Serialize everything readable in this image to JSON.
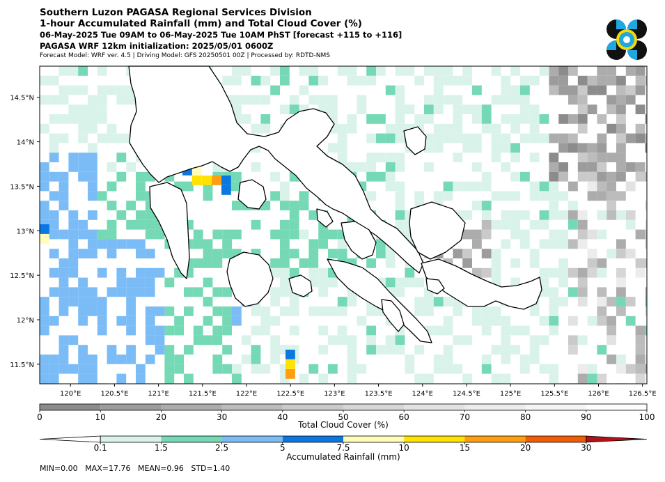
{
  "header": {
    "title": "Southern Luzon PAGASA Regional Services Division",
    "subtitle": "1-hour Accumulated Rainfall (mm) and Total Cloud Cover (%)",
    "valid_time": "06-May-2025 Tue 09AM to 06-May-2025 Tue 10AM PhST [forecast +115 to +116]",
    "init": "PAGASA WRF 12km initialization: 2025/05/01 0600Z",
    "model_info": "Forecast Model: WRF ver. 4.5 | Driving Model: GFS 20250501 00Z | Processed by: RDTD-NMS"
  },
  "logo": {
    "name": "pagasa-logo"
  },
  "map": {
    "extent": {
      "lon": [
        119.65,
        126.55
      ],
      "lat": [
        11.28,
        14.85
      ]
    },
    "lon_ticks": [
      "120°E",
      "120.5°E",
      "121°E",
      "121.5°E",
      "122°E",
      "122.5°E",
      "123°E",
      "123.5°E",
      "124°E",
      "124.5°E",
      "125°E",
      "125.5°E",
      "126°E",
      "126.5°E"
    ],
    "lon_values": [
      120,
      120.5,
      121,
      121.5,
      122,
      122.5,
      123,
      123.5,
      124,
      124.5,
      125,
      125.5,
      126,
      126.5
    ],
    "lat_ticks": [
      "14.5°N",
      "14°N",
      "13.5°N",
      "13°N",
      "12.5°N",
      "12°N",
      "11.5°N"
    ],
    "lat_values": [
      14.5,
      14,
      13.5,
      13,
      12.5,
      12,
      11.5
    ]
  },
  "cloud_colorbar": {
    "label": "Total Cloud Cover (%)",
    "ticks": [
      "0",
      "10",
      "20",
      "30",
      "40",
      "50",
      "60",
      "70",
      "80",
      "90",
      "100"
    ],
    "colors": [
      "#8c8c8c",
      "#9c9c9c",
      "#acacac",
      "#bcbcbc",
      "#cacaca",
      "#d6d6d6",
      "#e2e2e2",
      "#ececec",
      "#f5f5f5",
      "#fdfdfd"
    ]
  },
  "rain_colorbar": {
    "label": "Accumulated Rainfall (mm)",
    "ticks": [
      "0.1",
      "1.5",
      "2.5",
      "5",
      "7.5",
      "10",
      "15",
      "20",
      "30"
    ],
    "colors": [
      "#daf3ea",
      "#74d9b4",
      "#7bbcf7",
      "#0a78e0",
      "#fffdb8",
      "#ffe200",
      "#ff9f0f",
      "#f25c05",
      "#b0121a"
    ]
  },
  "stats": {
    "min": "MIN=0.00",
    "max": "MAX=17.76",
    "mean": "MEAN=0.96",
    "std": "STD=1.40"
  }
}
